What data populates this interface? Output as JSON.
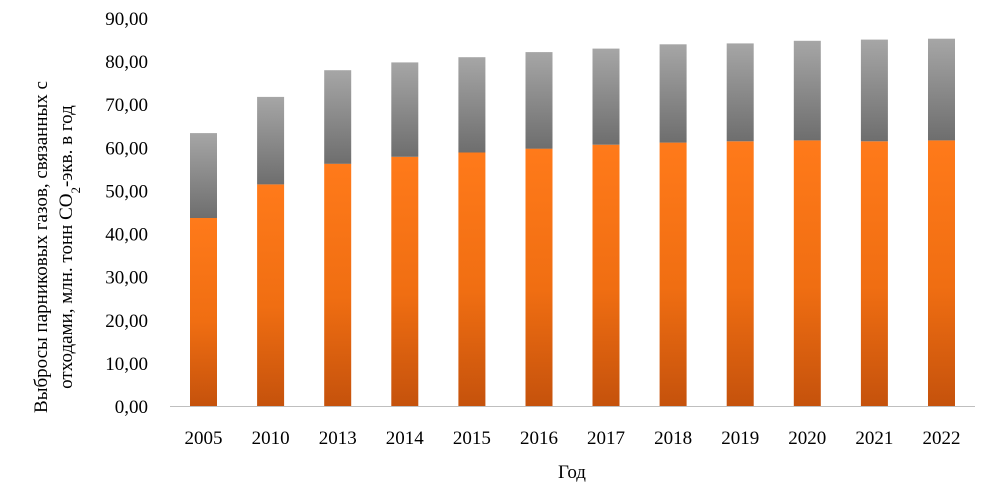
{
  "chart_data": {
    "type": "bar",
    "stacked": true,
    "categories": [
      "2005",
      "2010",
      "2013",
      "2014",
      "2015",
      "2016",
      "2017",
      "2018",
      "2019",
      "2020",
      "2021",
      "2022"
    ],
    "series": [
      {
        "values": [
          43.6,
          51.4,
          56.2,
          57.8,
          58.8,
          59.7,
          60.6,
          61.1,
          61.4,
          61.6,
          61.4,
          61.6
        ]
      },
      {
        "values": [
          19.7,
          20.3,
          21.7,
          21.9,
          22.1,
          22.4,
          22.3,
          22.8,
          22.7,
          23.1,
          23.6,
          23.6
        ]
      }
    ],
    "colors": {
      "series_1": "#e36c0a",
      "series_2": "#8c8c8c"
    },
    "ylim": [
      0,
      90
    ],
    "y_ticks": [
      "0,00",
      "10,00",
      "20,00",
      "30,00",
      "40,00",
      "50,00",
      "60,00",
      "70,00",
      "80,00",
      "90,00"
    ],
    "xlabel": "Год",
    "ylabel_line1": "Выбросы парниковых газов, связанных с",
    "ylabel_line2_pre": "отходами, млн. тонн CO",
    "ylabel_line2_sub": "2",
    "ylabel_line2_post": "-экв. в год",
    "grid": false,
    "legend": "none"
  }
}
